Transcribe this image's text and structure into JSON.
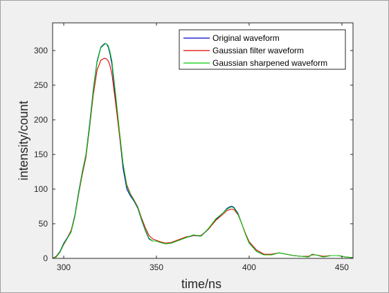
{
  "window": {
    "background": "#f0f0f0",
    "edge_color": "#a0a0a0"
  },
  "chart_data": {
    "type": "line",
    "title": "",
    "xlabel": "time/ns",
    "ylabel": "intensity/count",
    "xlim": [
      294,
      456
    ],
    "ylim": [
      0,
      340
    ],
    "xticks": [
      300,
      350,
      400,
      450
    ],
    "yticks": [
      0,
      50,
      100,
      150,
      200,
      250,
      300
    ],
    "grid": false,
    "legend_position": "top-right",
    "series": [
      {
        "name": "Original waveform",
        "color": "#0000cc",
        "x": [
          294,
          296,
          298,
          300,
          302,
          304,
          306,
          308,
          310,
          312,
          314,
          316,
          318,
          320,
          322,
          323,
          324,
          325,
          326,
          328,
          330,
          332,
          334,
          336,
          338,
          340,
          342,
          344,
          346,
          348,
          350,
          352,
          355,
          358,
          362,
          366,
          370,
          374,
          378,
          382,
          386,
          388,
          390,
          391,
          392,
          394,
          396,
          398,
          400,
          404,
          408,
          412,
          416,
          420,
          424,
          428,
          432,
          434,
          436,
          440,
          444,
          448,
          452,
          456
        ],
        "y": [
          0,
          3,
          10,
          22,
          30,
          40,
          62,
          95,
          125,
          150,
          195,
          245,
          285,
          305,
          310,
          310,
          305,
          295,
          280,
          230,
          180,
          130,
          100,
          90,
          82,
          72,
          55,
          40,
          28,
          25,
          25,
          23,
          21,
          22,
          26,
          30,
          33,
          32,
          42,
          56,
          66,
          72,
          75,
          75,
          73,
          65,
          50,
          35,
          22,
          10,
          5,
          5,
          8,
          6,
          4,
          3,
          2,
          6,
          5,
          2,
          4,
          4,
          2,
          1
        ]
      },
      {
        "name": "Gaussian filter waveform",
        "color": "#dd0000",
        "x": [
          294,
          296,
          298,
          300,
          302,
          304,
          306,
          308,
          310,
          312,
          314,
          316,
          318,
          320,
          322,
          323,
          324,
          325,
          326,
          328,
          330,
          332,
          334,
          336,
          338,
          340,
          342,
          344,
          346,
          348,
          350,
          352,
          355,
          358,
          362,
          366,
          370,
          374,
          378,
          382,
          386,
          388,
          390,
          391,
          392,
          394,
          396,
          398,
          400,
          404,
          408,
          412,
          416,
          420,
          424,
          428,
          432,
          434,
          436,
          440,
          444,
          448,
          452,
          456
        ],
        "y": [
          0,
          3,
          9,
          20,
          29,
          40,
          60,
          92,
          121,
          146,
          190,
          237,
          272,
          286,
          289,
          288,
          285,
          278,
          266,
          224,
          180,
          136,
          106,
          93,
          84,
          74,
          58,
          44,
          33,
          28,
          26,
          24,
          22,
          23,
          27,
          31,
          33,
          33,
          42,
          55,
          64,
          69,
          71,
          71,
          70,
          63,
          50,
          36,
          24,
          12,
          6,
          6,
          8,
          6,
          4,
          3,
          3,
          5,
          5,
          3,
          4,
          4,
          2,
          1
        ]
      },
      {
        "name": "Gaussian sharpened waveform",
        "color": "#00cc00",
        "x": [
          294,
          296,
          298,
          300,
          302,
          304,
          306,
          308,
          310,
          312,
          314,
          316,
          318,
          320,
          322,
          323,
          324,
          325,
          326,
          328,
          330,
          332,
          334,
          336,
          338,
          340,
          342,
          344,
          346,
          348,
          350,
          352,
          355,
          358,
          362,
          366,
          370,
          374,
          378,
          382,
          386,
          388,
          390,
          391,
          392,
          394,
          396,
          398,
          400,
          404,
          408,
          412,
          416,
          420,
          424,
          428,
          432,
          434,
          436,
          440,
          444,
          448,
          452,
          456
        ],
        "y": [
          0,
          2,
          9,
          21,
          29,
          38,
          60,
          93,
          124,
          149,
          192,
          243,
          283,
          304,
          309,
          310,
          307,
          298,
          285,
          236,
          186,
          137,
          104,
          92,
          83,
          73,
          56,
          41,
          29,
          25,
          25,
          23,
          21,
          22,
          26,
          30,
          34,
          32,
          43,
          57,
          66,
          71,
          74,
          74,
          72,
          64,
          50,
          35,
          22,
          10,
          5,
          5,
          8,
          6,
          4,
          3,
          2,
          6,
          5,
          2,
          4,
          4,
          2,
          1
        ]
      }
    ]
  }
}
